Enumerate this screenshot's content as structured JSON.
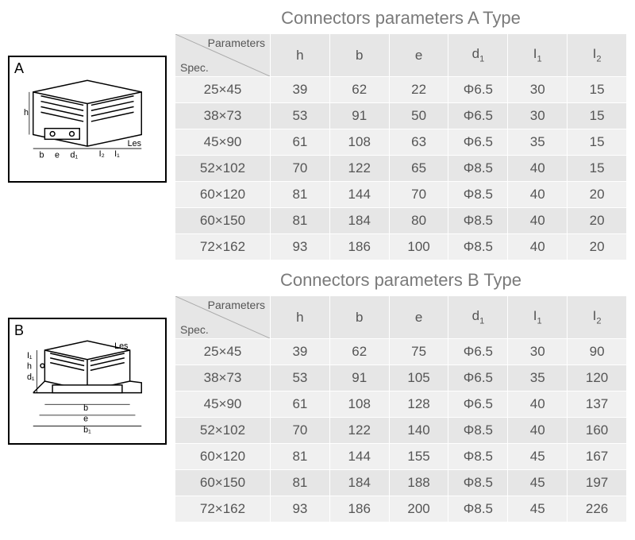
{
  "colors": {
    "bg": "#ffffff",
    "title_text": "#7a7a7a",
    "cell_text": "#555555",
    "header_bg": "#e6e6e6",
    "row_odd_bg": "#f0f0f0",
    "row_even_bg": "#e6e6e6",
    "border": "#ffffff",
    "diagram_border": "#000000"
  },
  "fonts": {
    "title_size_pt": 18,
    "cell_size_pt": 14,
    "corner_size_pt": 11
  },
  "corner": {
    "parameters_label": "Parameters",
    "spec_label": "Spec."
  },
  "columns": {
    "h": "h",
    "b": "b",
    "e": "e",
    "d1": "d",
    "d1_sub": "1",
    "i1": "I",
    "i1_sub": "1",
    "i2": "I",
    "i2_sub": "2"
  },
  "phi": "Φ",
  "tableA": {
    "title": "Connectors parameters A Type",
    "diagram_label": "A",
    "diagram_dims": {
      "h": "h",
      "b": "b",
      "e": "e",
      "d1": "d₁",
      "i1": "I₁",
      "i2": "I₂",
      "les": "Les"
    },
    "rows": [
      {
        "spec": "25×45",
        "h": "39",
        "b": "62",
        "e": "22",
        "d1": "6.5",
        "i1": "30",
        "i2": "15"
      },
      {
        "spec": "38×73",
        "h": "53",
        "b": "91",
        "e": "50",
        "d1": "6.5",
        "i1": "30",
        "i2": "15"
      },
      {
        "spec": "45×90",
        "h": "61",
        "b": "108",
        "e": "63",
        "d1": "6.5",
        "i1": "35",
        "i2": "15"
      },
      {
        "spec": "52×102",
        "h": "70",
        "b": "122",
        "e": "65",
        "d1": "8.5",
        "i1": "40",
        "i2": "15"
      },
      {
        "spec": "60×120",
        "h": "81",
        "b": "144",
        "e": "70",
        "d1": "8.5",
        "i1": "40",
        "i2": "20"
      },
      {
        "spec": "60×150",
        "h": "81",
        "b": "184",
        "e": "80",
        "d1": "8.5",
        "i1": "40",
        "i2": "20"
      },
      {
        "spec": "72×162",
        "h": "93",
        "b": "186",
        "e": "100",
        "d1": "8.5",
        "i1": "40",
        "i2": "20"
      }
    ]
  },
  "tableB": {
    "title": "Connectors parameters B Type",
    "diagram_label": "B",
    "diagram_dims": {
      "h": "h",
      "b": "b",
      "b1": "b₁",
      "e": "e",
      "d1": "d₁",
      "i1": "I₁",
      "les": "Les"
    },
    "rows": [
      {
        "spec": "25×45",
        "h": "39",
        "b": "62",
        "e": "75",
        "d1": "6.5",
        "i1": "30",
        "i2": "90"
      },
      {
        "spec": "38×73",
        "h": "53",
        "b": "91",
        "e": "105",
        "d1": "6.5",
        "i1": "35",
        "i2": "120"
      },
      {
        "spec": "45×90",
        "h": "61",
        "b": "108",
        "e": "128",
        "d1": "6.5",
        "i1": "40",
        "i2": "137"
      },
      {
        "spec": "52×102",
        "h": "70",
        "b": "122",
        "e": "140",
        "d1": "8.5",
        "i1": "40",
        "i2": "160"
      },
      {
        "spec": "60×120",
        "h": "81",
        "b": "144",
        "e": "155",
        "d1": "8.5",
        "i1": "45",
        "i2": "167"
      },
      {
        "spec": "60×150",
        "h": "81",
        "b": "184",
        "e": "188",
        "d1": "8.5",
        "i1": "45",
        "i2": "197"
      },
      {
        "spec": "72×162",
        "h": "93",
        "b": "186",
        "e": "200",
        "d1": "8.5",
        "i1": "45",
        "i2": "226"
      }
    ]
  }
}
